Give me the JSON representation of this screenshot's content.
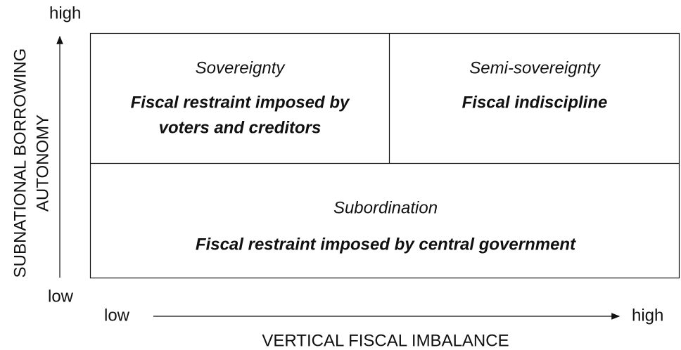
{
  "axes": {
    "y_label": [
      "SUBNATIONAL BORROWING",
      "AUTONOMY"
    ],
    "y_high": "high",
    "y_low": "low",
    "x_low": "low",
    "x_high": "high",
    "x_label": "VERTICAL FISCAL IMBALANCE"
  },
  "cells": [
    {
      "name": "Sovereignty",
      "lines": [
        "Fiscal restraint imposed by",
        "voters and creditors"
      ]
    },
    {
      "name": "Semi-sovereignty",
      "lines": [
        "Fiscal indiscipline"
      ]
    },
    {
      "name": "Subordination",
      "lines": [
        "Fiscal restraint imposed by central government"
      ]
    }
  ]
}
